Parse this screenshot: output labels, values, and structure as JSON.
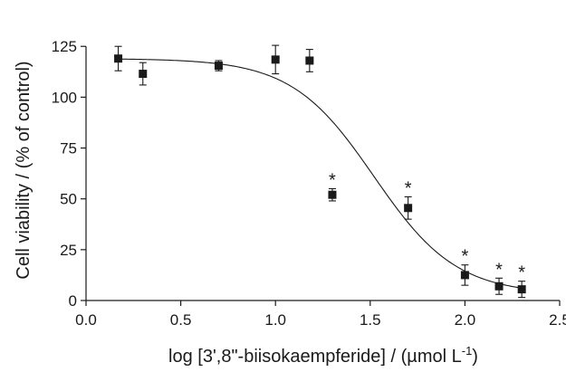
{
  "chart_data": {
    "type": "scatter",
    "title": "",
    "xlabel": "log [3',8\"-biisokaempferide] / (µmol L",
    "xlabel_sup": "-1",
    "xlabel_end": ")",
    "ylabel": "Cell viability / (% of control)",
    "xlim": [
      0.0,
      2.5
    ],
    "ylim": [
      0,
      130
    ],
    "x_ticks": [
      0.0,
      0.5,
      1.0,
      1.5,
      2.0,
      2.5
    ],
    "x_tick_labels": [
      "0.0",
      "0.5",
      "1.0",
      "1.5",
      "2.0",
      "2.5"
    ],
    "y_ticks": [
      0,
      25,
      50,
      75,
      100,
      125
    ],
    "y_tick_labels": [
      "0",
      "25",
      "50",
      "75",
      "100",
      "125"
    ],
    "grid": false,
    "points": [
      {
        "x": 0.17,
        "y": 119,
        "err": 6,
        "sig": ""
      },
      {
        "x": 0.3,
        "y": 111.5,
        "err": 5.5,
        "sig": ""
      },
      {
        "x": 0.7,
        "y": 115.5,
        "err": 2.5,
        "sig": ""
      },
      {
        "x": 1.0,
        "y": 118.5,
        "err": 7,
        "sig": ""
      },
      {
        "x": 1.18,
        "y": 118,
        "err": 5.5,
        "sig": ""
      },
      {
        "x": 1.3,
        "y": 52,
        "err": 3,
        "sig": "*"
      },
      {
        "x": 1.7,
        "y": 45.5,
        "err": 5.5,
        "sig": "*"
      },
      {
        "x": 2.0,
        "y": 12.5,
        "err": 5,
        "sig": "*"
      },
      {
        "x": 2.18,
        "y": 7,
        "err": 4,
        "sig": "*"
      },
      {
        "x": 2.3,
        "y": 5.5,
        "err": 4,
        "sig": "*"
      }
    ],
    "fit_curve": {
      "type": "four-parameter-logistic",
      "top": 119,
      "bottom": 3,
      "log_ec50": 1.52,
      "hill": 2.0,
      "x_range": [
        0.17,
        2.3
      ]
    }
  }
}
